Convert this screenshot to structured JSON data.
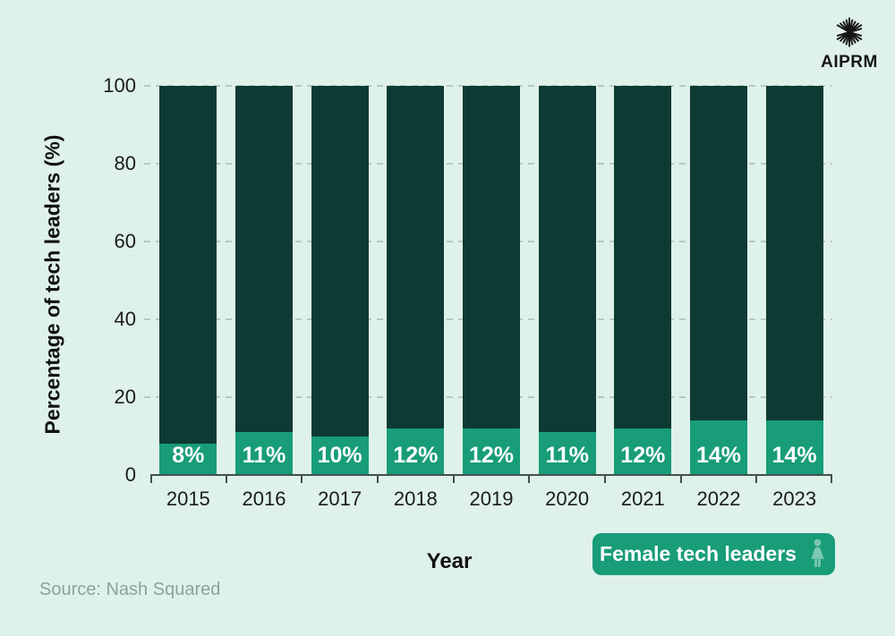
{
  "brand": {
    "name": "AIPRM",
    "icon": "aiprm-cube-icon"
  },
  "chart_data": {
    "type": "bar",
    "stacked": true,
    "title": "",
    "categories": [
      "2015",
      "2016",
      "2017",
      "2018",
      "2019",
      "2020",
      "2021",
      "2022",
      "2023"
    ],
    "series": [
      {
        "name": "Female tech leaders",
        "values": [
          8,
          11,
          10,
          12,
          12,
          11,
          12,
          14,
          14
        ],
        "labels": [
          "8%",
          "11%",
          "10%",
          "12%",
          "12%",
          "11%",
          "12%",
          "14%",
          "14%"
        ],
        "color": "#189d78"
      },
      {
        "name": "",
        "role": "remainder-to-100",
        "values": [
          92,
          89,
          90,
          88,
          88,
          89,
          88,
          86,
          86
        ],
        "color": "#0d3a33"
      }
    ],
    "xlabel": "Year",
    "ylabel": "Percentage of tech leaders (%)",
    "ylim": [
      0,
      100
    ],
    "yticks": [
      0,
      20,
      40,
      60,
      80,
      100
    ],
    "grid": "horizontal-dashed",
    "legend_position": "bottom-right"
  },
  "legend": {
    "label": "Female tech leaders",
    "icon": "female-figure-icon"
  },
  "source": {
    "text": "Source: Nash Squared"
  },
  "colors": {
    "background": "#dff1eb",
    "bar_primary": "#189d78",
    "bar_secondary": "#0d3a33",
    "grid": "#b7c8c2",
    "axis": "#41524e",
    "label_on_bar": "#ffffff",
    "legend_icon": "#7cc8b0",
    "source_text": "#8ba39c",
    "text": "#1b1b1b"
  }
}
